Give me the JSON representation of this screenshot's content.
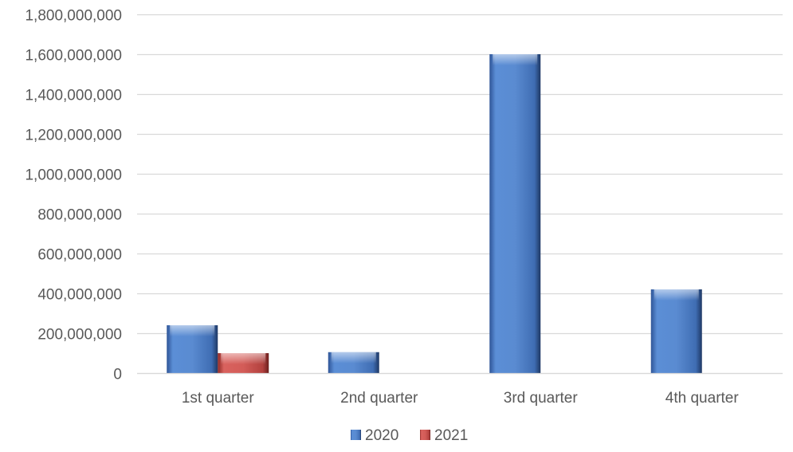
{
  "chart_data": {
    "type": "bar",
    "categories": [
      "1st quarter",
      "2nd quarter",
      "3rd quarter",
      "4th quarter"
    ],
    "series": [
      {
        "name": "2020",
        "values": [
          240000000,
          105000000,
          1600000000,
          420000000
        ],
        "color": "#4F81BD"
      },
      {
        "name": "2021",
        "values": [
          100000000,
          null,
          null,
          null
        ],
        "color": "#C0504D"
      }
    ],
    "ylim": [
      0,
      1800000000
    ],
    "yticks": [
      0,
      200000000,
      400000000,
      600000000,
      800000000,
      1000000000,
      1200000000,
      1400000000,
      1600000000,
      1800000000
    ],
    "ytick_labels": [
      "0",
      "200,000,000",
      "400,000,000",
      "600,000,000",
      "800,000,000",
      "1,000,000,000",
      "1,200,000,000",
      "1,400,000,000",
      "1,600,000,000",
      "1,800,000,000"
    ],
    "grid": true,
    "legend_position": "bottom"
  }
}
